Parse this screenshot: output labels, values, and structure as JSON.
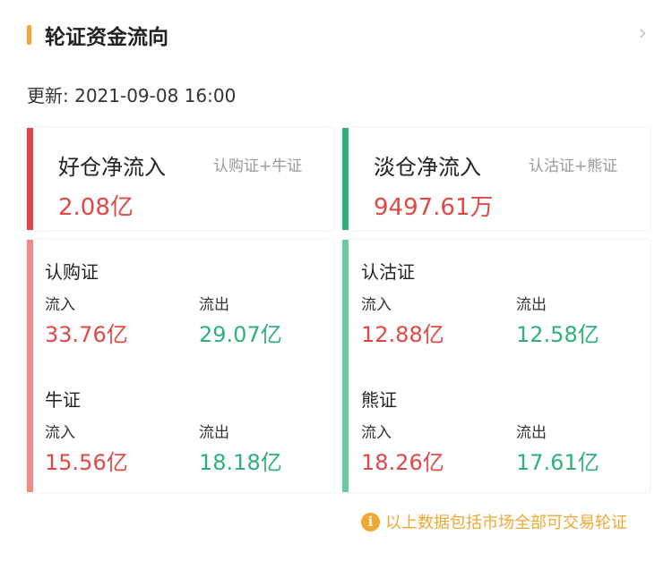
{
  "header": {
    "title": "轮证资金流向",
    "update": "更新: 2021-09-08 16:00"
  },
  "colors": {
    "accent": "#f2a93b",
    "red": "#e04848",
    "green": "#2fb07a",
    "red_light": "#f08a8a",
    "green_light": "#6ccaa0"
  },
  "summary": [
    {
      "title": "好仓净流入",
      "sub": "认购证+牛证",
      "value": "2.08亿"
    },
    {
      "title": "淡仓净流入",
      "sub": "认沽证+熊证",
      "value": "9497.61万"
    }
  ],
  "detail": [
    {
      "groups": [
        {
          "name": "认购证",
          "in_label": "流入",
          "in": "33.76亿",
          "out_label": "流出",
          "out": "29.07亿"
        },
        {
          "name": "牛证",
          "in_label": "流入",
          "in": "15.56亿",
          "out_label": "流出",
          "out": "18.18亿"
        }
      ]
    },
    {
      "groups": [
        {
          "name": "认沽证",
          "in_label": "流入",
          "in": "12.88亿",
          "out_label": "流出",
          "out": "12.58亿"
        },
        {
          "name": "熊证",
          "in_label": "流入",
          "in": "18.26亿",
          "out_label": "流出",
          "out": "17.61亿"
        }
      ]
    }
  ],
  "footer": {
    "note": "以上数据包括市场全部可交易轮证",
    "icon": "info-icon"
  }
}
